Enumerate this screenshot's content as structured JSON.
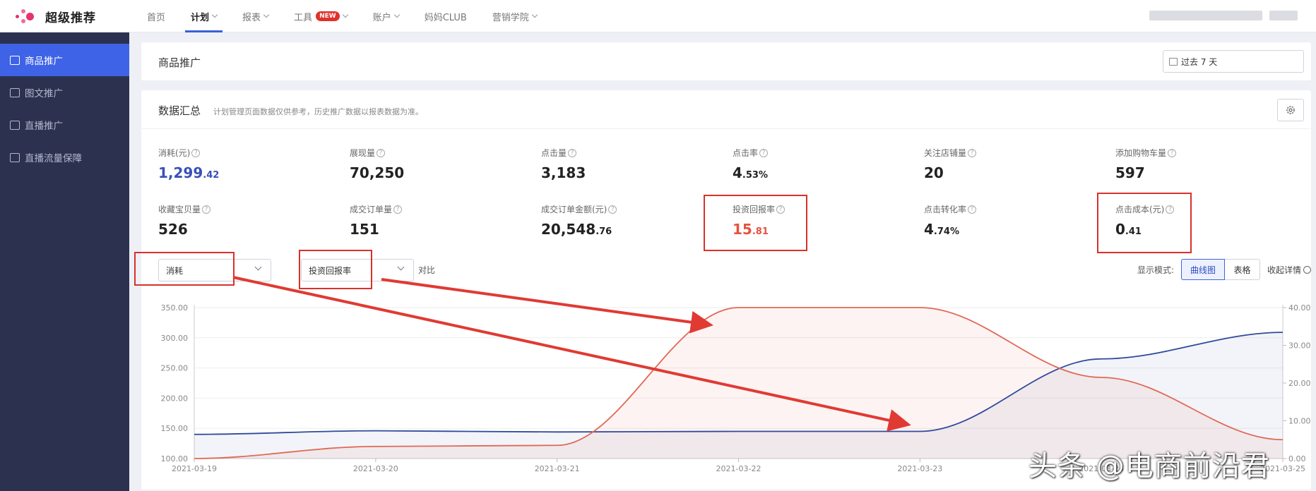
{
  "brand": {
    "name": "超级推荐"
  },
  "nav": {
    "items": [
      {
        "label": "首页",
        "active": false,
        "has_dropdown": false
      },
      {
        "label": "计划",
        "active": true,
        "has_dropdown": true
      },
      {
        "label": "报表",
        "active": false,
        "has_dropdown": true
      },
      {
        "label": "工具",
        "active": false,
        "has_dropdown": true,
        "badge": "NEW"
      },
      {
        "label": "账户",
        "active": false,
        "has_dropdown": true
      },
      {
        "label": "妈妈CLUB",
        "active": false,
        "has_dropdown": false
      },
      {
        "label": "营销学院",
        "active": false,
        "has_dropdown": true
      }
    ]
  },
  "sidebar": {
    "items": [
      {
        "label": "商品推广",
        "icon": "bag-icon",
        "active": true
      },
      {
        "label": "图文推广",
        "icon": "image-icon",
        "active": false
      },
      {
        "label": "直播推广",
        "icon": "live-icon",
        "active": false
      },
      {
        "label": "直播流量保障",
        "icon": "shield-icon",
        "active": false
      }
    ]
  },
  "header": {
    "title": "商品推广",
    "date_range": "过去 7 天"
  },
  "summary": {
    "title": "数据汇总",
    "note": "计划管理页面数据仅供参考，历史推广数据以报表数据为准。",
    "metrics": [
      {
        "label": "消耗(元)",
        "int": "1,299",
        "dec": ".42",
        "style": "blue"
      },
      {
        "label": "展现量",
        "int": "70,250",
        "dec": "",
        "style": ""
      },
      {
        "label": "点击量",
        "int": "3,183",
        "dec": "",
        "style": ""
      },
      {
        "label": "点击率",
        "int": "4",
        "dec": ".53%",
        "style": ""
      },
      {
        "label": "关注店铺量",
        "int": "20",
        "dec": "",
        "style": ""
      },
      {
        "label": "添加购物车量",
        "int": "597",
        "dec": "",
        "style": ""
      },
      {
        "label": "收藏宝贝量",
        "int": "526",
        "dec": "",
        "style": ""
      },
      {
        "label": "成交订单量",
        "int": "151",
        "dec": "",
        "style": ""
      },
      {
        "label": "成交订单金额(元)",
        "int": "20,548",
        "dec": ".76",
        "style": ""
      },
      {
        "label": "投资回报率",
        "int": "15",
        "dec": ".81",
        "style": "red"
      },
      {
        "label": "点击转化率",
        "int": "4",
        "dec": ".74%",
        "style": ""
      },
      {
        "label": "点击成本(元)",
        "int": "0",
        "dec": ".41",
        "style": ""
      }
    ]
  },
  "controls": {
    "primary_metric": "消耗",
    "compare_label": "对比",
    "compare_metric": "投资回报率",
    "mode_label": "显示模式:",
    "mode_curve": "曲线图",
    "mode_table": "表格",
    "collapse_label": "收起详情"
  },
  "chart_data": {
    "type": "line",
    "x": [
      "2021-03-19",
      "2021-03-20",
      "2021-03-21",
      "2021-03-22",
      "2021-03-23",
      "2021-03-24",
      "2021-03-25"
    ],
    "series": [
      {
        "name": "消耗",
        "axis": "left",
        "color": "#2f4a9b",
        "values": [
          140,
          146,
          144,
          145,
          145,
          265,
          309
        ]
      },
      {
        "name": "投资回报率",
        "axis": "right",
        "color": "#e06a55",
        "values": [
          0,
          3.2,
          3.5,
          40,
          40,
          21.5,
          5
        ]
      }
    ],
    "y_left": {
      "min": 100,
      "max": 350,
      "ticks": [
        "100.00",
        "150.00",
        "200.00",
        "250.00",
        "300.00",
        "350.00"
      ]
    },
    "y_right": {
      "min": 0,
      "max": 40,
      "ticks": [
        "0.00",
        "10.00",
        "20.00",
        "30.00",
        "40.00"
      ]
    },
    "grid": true
  },
  "watermark": "头条 @电商前沿君"
}
